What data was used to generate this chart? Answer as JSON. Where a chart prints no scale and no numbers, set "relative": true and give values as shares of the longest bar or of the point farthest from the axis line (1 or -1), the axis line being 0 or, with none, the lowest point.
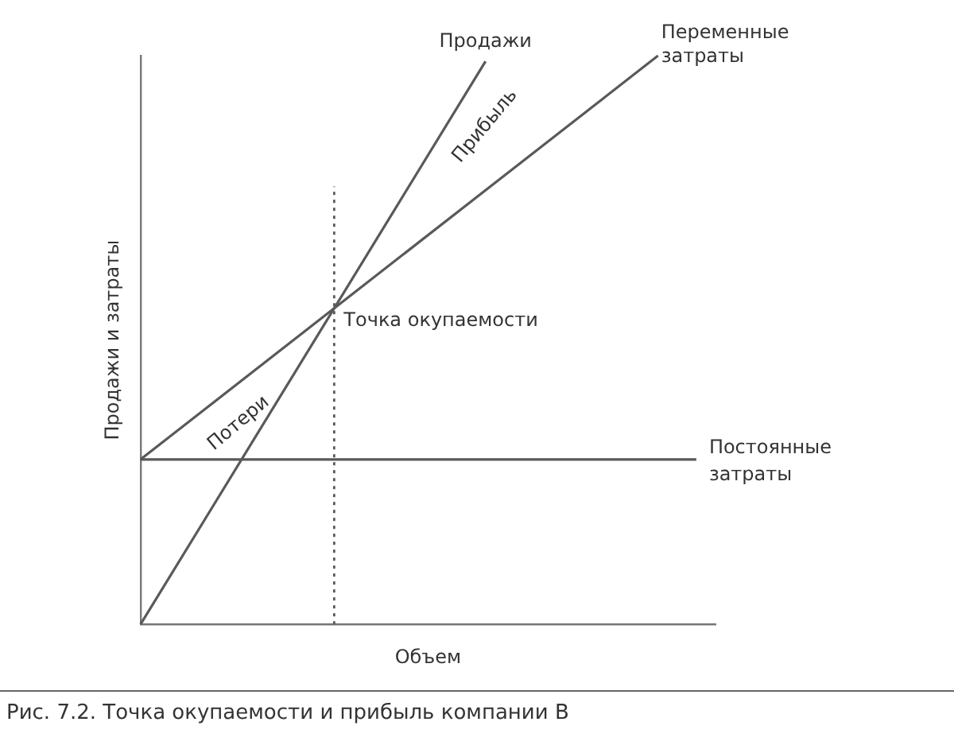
{
  "chart_data": {
    "type": "line",
    "relative": true,
    "xlabel": "Объем",
    "ylabel": "Продажи и затраты",
    "categories": [
      null,
      null,
      null,
      null,
      null,
      null,
      null,
      null,
      null,
      null,
      null,
      null,
      null,
      null,
      null,
      null,
      null,
      null,
      null,
      null,
      null,
      null,
      null,
      null,
      null,
      null,
      null,
      null,
      null,
      null,
      null
    ],
    "series": [
      {
        "name": "Продажи",
        "color": "#595959",
        "values": [
          0,
          null,
          null,
          null,
          null,
          null,
          null,
          null,
          null,
          null,
          null,
          null,
          null,
          null,
          null,
          null,
          null,
          null,
          0.99,
          null,
          null,
          null,
          null,
          null,
          null,
          null,
          null,
          null,
          null,
          null,
          null
        ]
      },
      {
        "name": "Переменные затраты",
        "color": "#595959",
        "values": [
          0.29,
          null,
          null,
          null,
          null,
          null,
          null,
          null,
          null,
          null,
          null,
          null,
          null,
          null,
          null,
          null,
          null,
          null,
          null,
          null,
          null,
          null,
          null,
          null,
          null,
          null,
          null,
          1,
          null,
          null,
          null
        ]
      },
      {
        "name": "Постоянные затраты",
        "color": "#595959",
        "values": [
          0.29,
          null,
          null,
          null,
          null,
          null,
          null,
          null,
          null,
          null,
          null,
          null,
          null,
          null,
          null,
          null,
          null,
          null,
          null,
          null,
          null,
          null,
          null,
          null,
          null,
          null,
          null,
          null,
          null,
          0.29,
          null
        ]
      }
    ],
    "ref_lines": [
      {
        "axis": "x",
        "color": "#595959",
        "line_style": "dotted"
      }
    ],
    "annotations": [
      "Точка окупаемости",
      "Прибыль",
      "Потери",
      "Рис. 7.2. Точка окупаемости и прибыль компании B"
    ]
  }
}
